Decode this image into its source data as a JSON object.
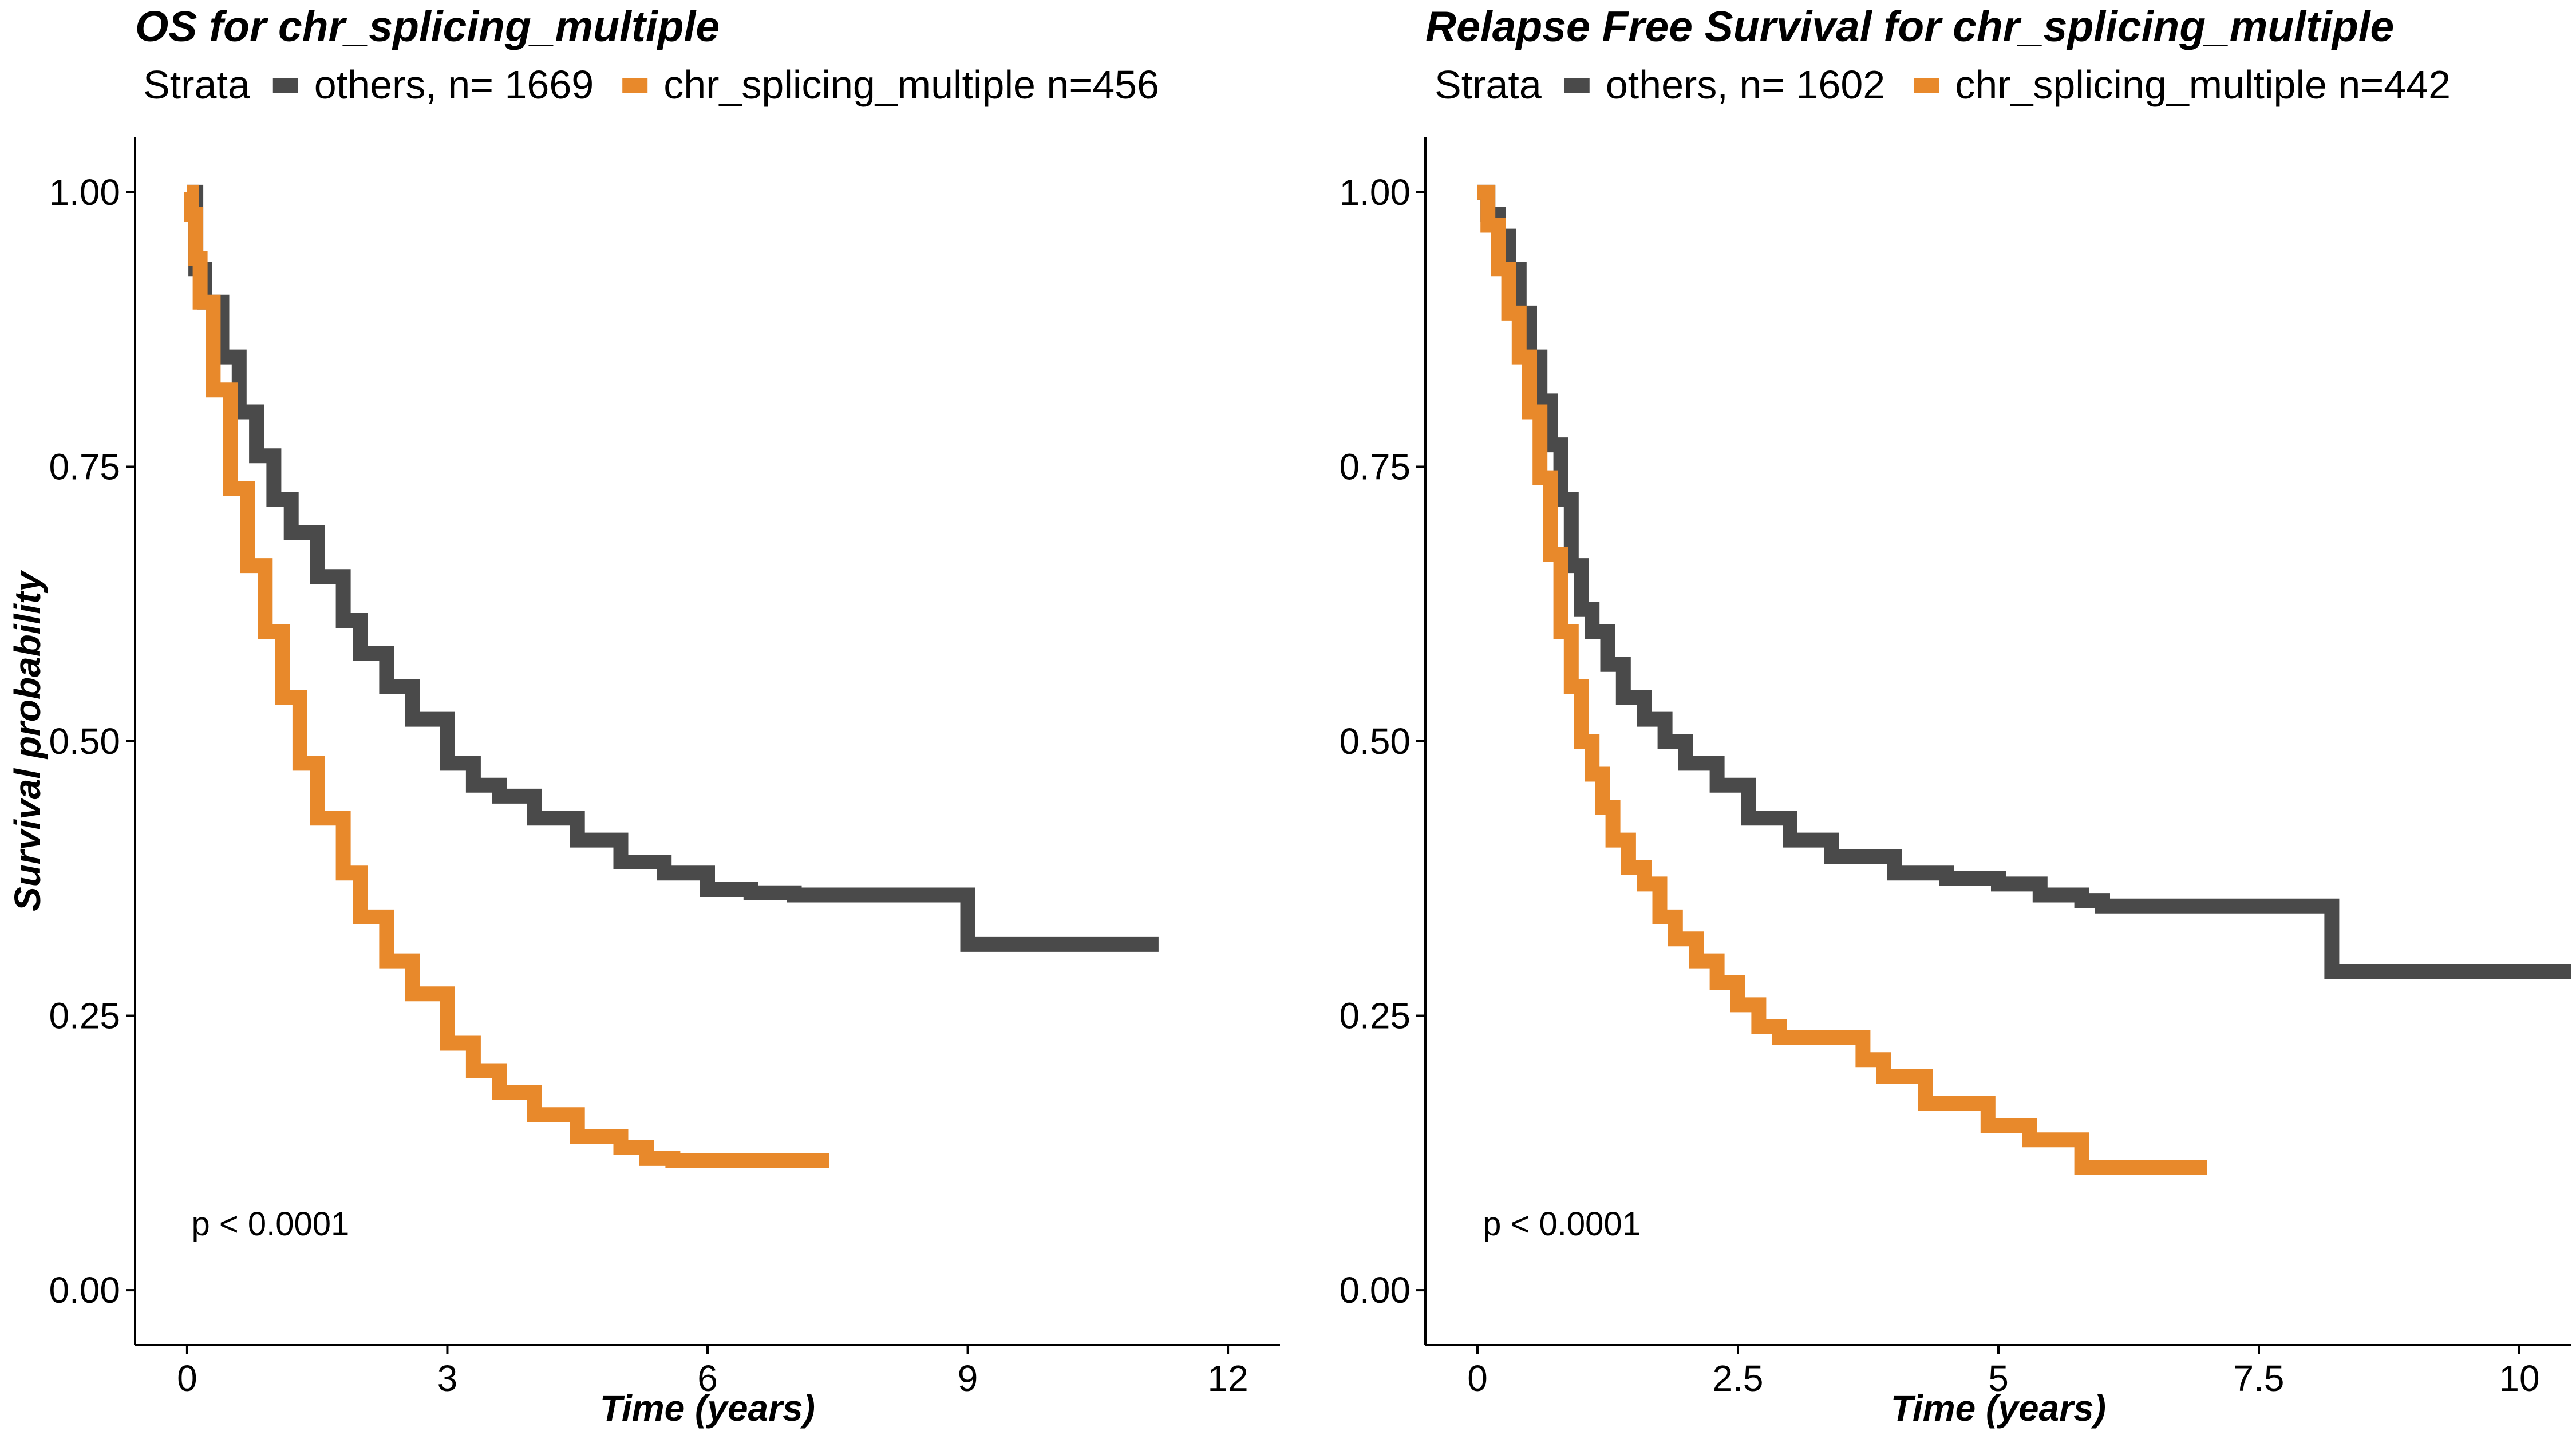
{
  "chart_data": [
    {
      "type": "line",
      "title": "OS  for  chr_splicing_multiple",
      "legend_title": "Strata",
      "legend_position": "top",
      "xlabel": "Time (years)",
      "ylabel": "Survival probability",
      "xlim": [
        -0.6,
        12.6
      ],
      "ylim": [
        -0.05,
        1.05
      ],
      "x_ticks": [
        0,
        3,
        6,
        9,
        12
      ],
      "x_tick_labels": [
        "0",
        "3",
        "6",
        "9",
        "12"
      ],
      "y_ticks": [
        0,
        0.25,
        0.5,
        0.75,
        1
      ],
      "y_tick_labels": [
        "0.00",
        "0.25",
        "0.50",
        "0.75",
        "1.00"
      ],
      "grid": false,
      "annotation": "p < 0.0001",
      "annotation_at": [
        0.05,
        0.05
      ],
      "series": [
        {
          "name": "others, n= 1669",
          "color": "#4a4a4a",
          "points": [
            [
              0,
              1
            ],
            [
              0.1,
              0.93
            ],
            [
              0.2,
              0.9
            ],
            [
              0.4,
              0.85
            ],
            [
              0.6,
              0.8
            ],
            [
              0.8,
              0.76
            ],
            [
              1,
              0.72
            ],
            [
              1.2,
              0.69
            ],
            [
              1.5,
              0.65
            ],
            [
              1.8,
              0.61
            ],
            [
              2,
              0.58
            ],
            [
              2.3,
              0.55
            ],
            [
              2.6,
              0.52
            ],
            [
              3,
              0.48
            ],
            [
              3.3,
              0.46
            ],
            [
              3.6,
              0.45
            ],
            [
              4,
              0.43
            ],
            [
              4.5,
              0.41
            ],
            [
              5,
              0.39
            ],
            [
              5.5,
              0.38
            ],
            [
              6,
              0.365
            ],
            [
              6.5,
              0.362
            ],
            [
              7,
              0.36
            ],
            [
              9,
              0.36
            ],
            [
              9,
              0.315
            ],
            [
              11.2,
              0.315
            ]
          ]
        },
        {
          "name": "chr_splicing_multiple n=456",
          "color": "#e8892b",
          "points": [
            [
              0,
              1
            ],
            [
              0.05,
              0.98
            ],
            [
              0.1,
              0.94
            ],
            [
              0.15,
              0.9
            ],
            [
              0.3,
              0.82
            ],
            [
              0.5,
              0.73
            ],
            [
              0.7,
              0.66
            ],
            [
              0.9,
              0.6
            ],
            [
              1.1,
              0.54
            ],
            [
              1.3,
              0.48
            ],
            [
              1.5,
              0.43
            ],
            [
              1.8,
              0.38
            ],
            [
              2,
              0.34
            ],
            [
              2.3,
              0.3
            ],
            [
              2.6,
              0.27
            ],
            [
              3,
              0.225
            ],
            [
              3.3,
              0.2
            ],
            [
              3.6,
              0.18
            ],
            [
              4,
              0.16
            ],
            [
              4.5,
              0.14
            ],
            [
              5,
              0.13
            ],
            [
              5.3,
              0.12
            ],
            [
              5.6,
              0.118
            ],
            [
              7.4,
              0.118
            ]
          ]
        }
      ]
    },
    {
      "type": "line",
      "title": "Relapse Free Survival for  chr_splicing_multiple",
      "legend_title": "Strata",
      "legend_position": "top",
      "xlabel": "Time (years)",
      "ylabel": "",
      "xlim": [
        -0.5,
        10.5
      ],
      "ylim": [
        -0.05,
        1.05
      ],
      "x_ticks": [
        0,
        2.5,
        5,
        7.5,
        10
      ],
      "x_tick_labels": [
        "0",
        "2.5",
        "5",
        "7.5",
        "10"
      ],
      "y_ticks": [
        0,
        0.25,
        0.5,
        0.75,
        1
      ],
      "y_tick_labels": [
        "0.00",
        "0.25",
        "0.50",
        "0.75",
        "1.00"
      ],
      "grid": false,
      "annotation": "p < 0.0001",
      "annotation_at": [
        0.05,
        0.05
      ],
      "series": [
        {
          "name": "others, n= 1602",
          "color": "#4a4a4a",
          "points": [
            [
              0,
              1
            ],
            [
              0.1,
              0.98
            ],
            [
              0.2,
              0.96
            ],
            [
              0.3,
              0.93
            ],
            [
              0.4,
              0.89
            ],
            [
              0.5,
              0.85
            ],
            [
              0.6,
              0.81
            ],
            [
              0.7,
              0.77
            ],
            [
              0.8,
              0.72
            ],
            [
              0.9,
              0.66
            ],
            [
              1,
              0.62
            ],
            [
              1.1,
              0.6
            ],
            [
              1.25,
              0.57
            ],
            [
              1.4,
              0.54
            ],
            [
              1.6,
              0.52
            ],
            [
              1.8,
              0.5
            ],
            [
              2,
              0.48
            ],
            [
              2.3,
              0.46
            ],
            [
              2.6,
              0.43
            ],
            [
              3,
              0.41
            ],
            [
              3.4,
              0.395
            ],
            [
              4,
              0.38
            ],
            [
              4.5,
              0.375
            ],
            [
              5,
              0.37
            ],
            [
              5.4,
              0.36
            ],
            [
              5.8,
              0.355
            ],
            [
              6,
              0.35
            ],
            [
              8.2,
              0.35
            ],
            [
              8.2,
              0.29
            ],
            [
              10.5,
              0.29
            ]
          ]
        },
        {
          "name": "chr_splicing_multiple n=442",
          "color": "#e8892b",
          "points": [
            [
              0,
              1
            ],
            [
              0.1,
              0.97
            ],
            [
              0.2,
              0.93
            ],
            [
              0.3,
              0.89
            ],
            [
              0.4,
              0.85
            ],
            [
              0.5,
              0.8
            ],
            [
              0.6,
              0.74
            ],
            [
              0.7,
              0.67
            ],
            [
              0.8,
              0.6
            ],
            [
              0.9,
              0.55
            ],
            [
              1,
              0.5
            ],
            [
              1.1,
              0.47
            ],
            [
              1.2,
              0.44
            ],
            [
              1.3,
              0.41
            ],
            [
              1.45,
              0.385
            ],
            [
              1.6,
              0.37
            ],
            [
              1.75,
              0.34
            ],
            [
              1.9,
              0.32
            ],
            [
              2.1,
              0.3
            ],
            [
              2.3,
              0.28
            ],
            [
              2.5,
              0.26
            ],
            [
              2.7,
              0.24
            ],
            [
              2.9,
              0.23
            ],
            [
              3.5,
              0.23
            ],
            [
              3.7,
              0.21
            ],
            [
              3.9,
              0.195
            ],
            [
              4.2,
              0.195
            ],
            [
              4.3,
              0.17
            ],
            [
              4.9,
              0.17
            ],
            [
              4.9,
              0.15
            ],
            [
              5.3,
              0.15
            ],
            [
              5.3,
              0.137
            ],
            [
              5.8,
              0.137
            ],
            [
              5.8,
              0.112
            ],
            [
              7,
              0.112
            ]
          ]
        }
      ]
    }
  ]
}
